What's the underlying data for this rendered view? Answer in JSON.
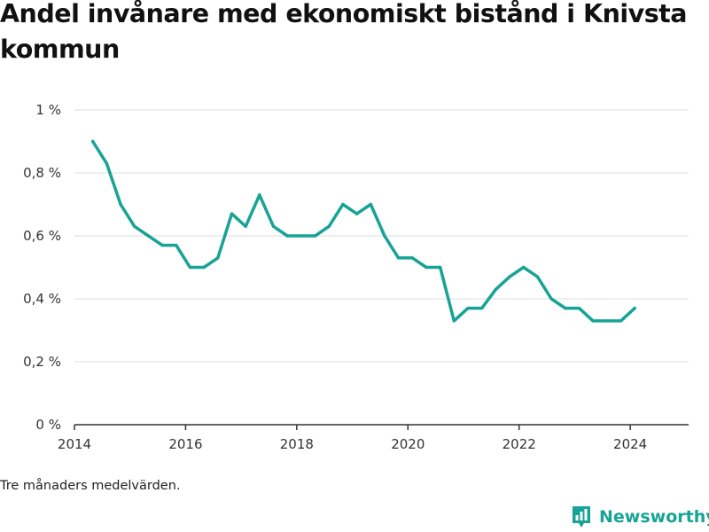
{
  "title": "Andel invånare med ekonomiskt bistånd i Knivsta kommun",
  "note": "Tre månaders medelvärden.",
  "brand": {
    "name": "Newsworthy",
    "icon": "bar-chart-speech-icon",
    "color": "#17a396"
  },
  "chart_data": {
    "type": "line",
    "title": "Andel invånare med ekonomiskt bistånd i Knivsta kommun",
    "xlabel": "",
    "ylabel": "",
    "xlim": [
      2014,
      2025.05
    ],
    "ylim": [
      0,
      1
    ],
    "x_ticks": [
      {
        "value": 2014,
        "label": "2014"
      },
      {
        "value": 2016,
        "label": "2016"
      },
      {
        "value": 2018,
        "label": "2018"
      },
      {
        "value": 2020,
        "label": "2020"
      },
      {
        "value": 2022,
        "label": "2022"
      },
      {
        "value": 2024,
        "label": "2024"
      }
    ],
    "y_ticks": [
      {
        "value": 0,
        "label": "0 %"
      },
      {
        "value": 0.2,
        "label": "0,2 %"
      },
      {
        "value": 0.4,
        "label": "0,4 %"
      },
      {
        "value": 0.6,
        "label": "0,6 %"
      },
      {
        "value": 0.8,
        "label": "0,8 %"
      },
      {
        "value": 1,
        "label": "1 %"
      }
    ],
    "grid": true,
    "line_color": "#17a396",
    "series": [
      {
        "x": [
          2014.33,
          2014.58,
          2014.83,
          2015.08,
          2015.33,
          2015.58,
          2015.83,
          2016.08,
          2016.33,
          2016.58,
          2016.83,
          2017.08,
          2017.33,
          2017.58,
          2017.83,
          2018.08,
          2018.33,
          2018.58,
          2018.83,
          2019.08,
          2019.33,
          2019.58,
          2019.83,
          2020.08,
          2020.33,
          2020.58,
          2020.83,
          2021.08,
          2021.33,
          2021.58,
          2021.83,
          2022.08,
          2022.33,
          2022.58,
          2022.83,
          2023.08,
          2023.33,
          2023.58,
          2023.83,
          2024.08
        ],
        "y": [
          0.9,
          0.83,
          0.7,
          0.63,
          0.6,
          0.57,
          0.57,
          0.5,
          0.5,
          0.53,
          0.67,
          0.63,
          0.73,
          0.63,
          0.6,
          0.6,
          0.6,
          0.63,
          0.7,
          0.67,
          0.7,
          0.6,
          0.53,
          0.53,
          0.5,
          0.5,
          0.33,
          0.37,
          0.37,
          0.43,
          0.47,
          0.5,
          0.47,
          0.4,
          0.37,
          0.37,
          0.33,
          0.33,
          0.33,
          0.37
        ]
      }
    ]
  }
}
